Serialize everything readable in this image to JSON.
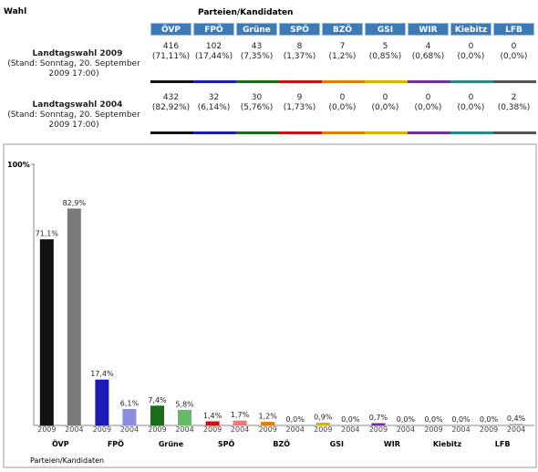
{
  "table": {
    "wahl_label": "Wahl",
    "parties_label": "Parteien/Kandidaten",
    "parties": [
      "ÖVP",
      "FPÖ",
      "Grüne",
      "SPÖ",
      "BZÖ",
      "GSI",
      "WIR",
      "Kiebitz",
      "LFB"
    ],
    "rows": [
      {
        "label": "Landtagswahl 2009",
        "stand": "(Stand: Sonntag, 20. September 2009 17:00)",
        "votes": [
          416,
          102,
          43,
          8,
          7,
          5,
          4,
          0,
          0
        ],
        "pct": [
          "(71,11%)",
          "(17,44%)",
          "(7,35%)",
          "(1,37%)",
          "(1,2%)",
          "(0,85%)",
          "(0,68%)",
          "(0,0%)",
          "(0,0%)"
        ]
      },
      {
        "label": "Landtagswahl 2004",
        "stand": "(Stand: Sonntag, 20. September 2009 17:00)",
        "votes": [
          432,
          32,
          30,
          9,
          0,
          0,
          0,
          0,
          2
        ],
        "pct": [
          "(82,92%)",
          "(6,14%)",
          "(5,76%)",
          "(1,73%)",
          "(0,0%)",
          "(0,0%)",
          "(0,0%)",
          "(0,0%)",
          "(0,38%)"
        ]
      }
    ]
  },
  "chart_data": {
    "type": "bar",
    "categories": [
      "ÖVP",
      "FPÖ",
      "Grüne",
      "SPÖ",
      "BZÖ",
      "GSI",
      "WIR",
      "Kiebitz",
      "LFB"
    ],
    "x_label": "Parteien/Kandidaten",
    "ylim": [
      0,
      100
    ],
    "yticks": [
      {
        "value": 100,
        "label": "100%"
      }
    ],
    "series": [
      {
        "name": "2009",
        "colors": [
          "#111111",
          "#1c1cb4",
          "#1a6b1a",
          "#cc1111",
          "#e08000",
          "#d8b400",
          "#7030a0",
          "#2a8a8a",
          "#555555"
        ],
        "values": [
          71.1,
          17.4,
          7.4,
          1.4,
          1.2,
          0.9,
          0.7,
          0.0,
          0.0
        ],
        "value_labels": [
          "71,1%",
          "17,4%",
          "7,4%",
          "1,4%",
          "1,2%",
          "0,9%",
          "0,7%",
          "0,0%",
          "0,0%"
        ]
      },
      {
        "name": "2004",
        "colors": [
          "#7a7a7a",
          "#8c8ce0",
          "#66bb66",
          "#ee7777",
          "#f0b060",
          "#eedd66",
          "#b090d0",
          "#80c0c0",
          "#aaaaaa"
        ],
        "values": [
          82.9,
          6.1,
          5.8,
          1.7,
          0.0,
          0.0,
          0.0,
          0.0,
          0.4
        ],
        "value_labels": [
          "82,9%",
          "6,1%",
          "5,8%",
          "1,7%",
          "0,0%",
          "0,0%",
          "0,0%",
          "0,0%",
          "0,4%"
        ]
      }
    ]
  }
}
